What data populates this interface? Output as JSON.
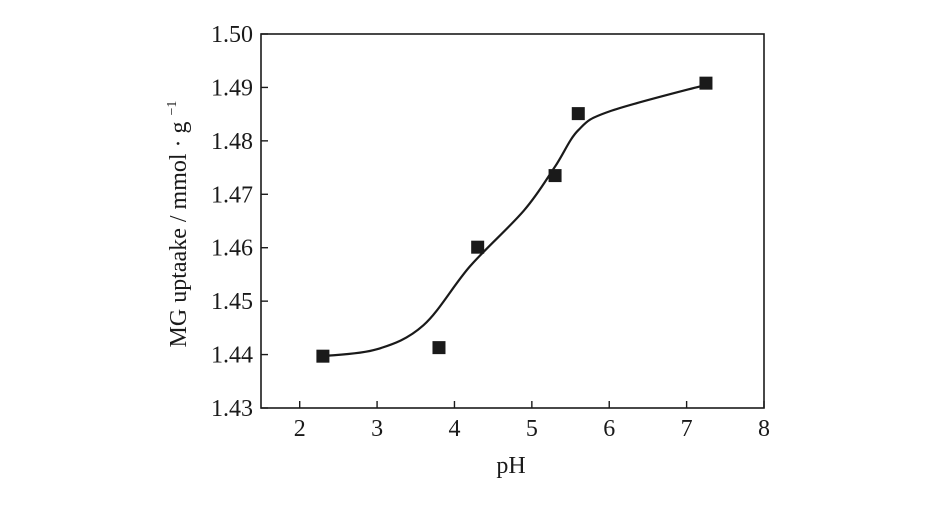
{
  "chart_data": {
    "type": "scatter",
    "xlabel": "pH",
    "ylabel": {
      "main": "MG uptaake / mmol",
      "dot": "·",
      "unit": "g",
      "exponent": "−1"
    },
    "xlim": [
      1.5,
      8
    ],
    "ylim": [
      1.43,
      1.5
    ],
    "x_ticks": [
      2,
      3,
      4,
      5,
      6,
      7,
      8
    ],
    "x_tick_labels": [
      "2",
      "3",
      "4",
      "5",
      "6",
      "7",
      "8"
    ],
    "y_ticks": [
      1.43,
      1.44,
      1.45,
      1.46,
      1.47,
      1.48,
      1.49,
      1.5
    ],
    "y_tick_labels": [
      "1.43",
      "1.44",
      "1.45",
      "1.46",
      "1.47",
      "1.48",
      "1.49",
      "1.50"
    ],
    "grid": false,
    "series": [
      {
        "marker": "square",
        "color": "#1a1a1a",
        "points": [
          {
            "x": 2.3,
            "y": 1.4397
          },
          {
            "x": 3.8,
            "y": 1.4413
          },
          {
            "x": 4.3,
            "y": 1.4601
          },
          {
            "x": 5.3,
            "y": 1.4735
          },
          {
            "x": 5.6,
            "y": 1.4851
          },
          {
            "x": 7.25,
            "y": 1.4908
          }
        ]
      }
    ],
    "fit_curve": {
      "color": "#1a1a1a",
      "points": [
        {
          "x": 2.3,
          "y": 1.4397
        },
        {
          "x": 3.0,
          "y": 1.441
        },
        {
          "x": 3.6,
          "y": 1.4455
        },
        {
          "x": 4.2,
          "y": 1.4565
        },
        {
          "x": 4.9,
          "y": 1.467
        },
        {
          "x": 5.3,
          "y": 1.4752
        },
        {
          "x": 5.6,
          "y": 1.482
        },
        {
          "x": 6.0,
          "y": 1.4855
        },
        {
          "x": 7.25,
          "y": 1.4905
        }
      ]
    }
  }
}
